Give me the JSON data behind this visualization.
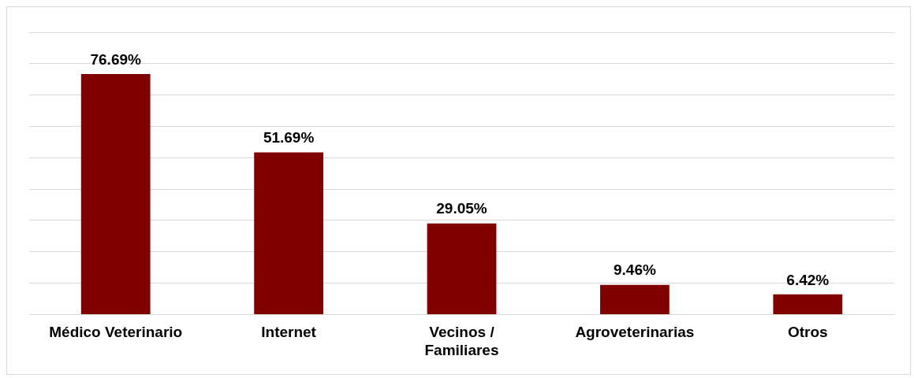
{
  "chart_data": {
    "type": "bar",
    "categories": [
      "Médico Veterinario",
      "Internet",
      "Vecinos /\nFamiliares",
      "Agroveterinarias",
      "Otros"
    ],
    "values": [
      76.69,
      51.69,
      29.05,
      9.46,
      6.42
    ],
    "value_labels": [
      "76.69%",
      "51.69%",
      "29.05%",
      "9.46%",
      "6.42%"
    ],
    "color": "#800000",
    "ylim": [
      0,
      90
    ],
    "yticks": [
      {
        "value": 0,
        "label": null
      },
      {
        "value": 10,
        "label": null
      },
      {
        "value": 20,
        "label": null
      },
      {
        "value": 30,
        "label": null
      },
      {
        "value": 40,
        "label": null
      },
      {
        "value": 50,
        "label": null
      },
      {
        "value": 60,
        "label": null
      },
      {
        "value": 70,
        "label": null
      },
      {
        "value": 80,
        "label": null
      },
      {
        "value": 90,
        "label": null
      }
    ],
    "grid": "y",
    "legend": false,
    "tick_labels": "x"
  }
}
